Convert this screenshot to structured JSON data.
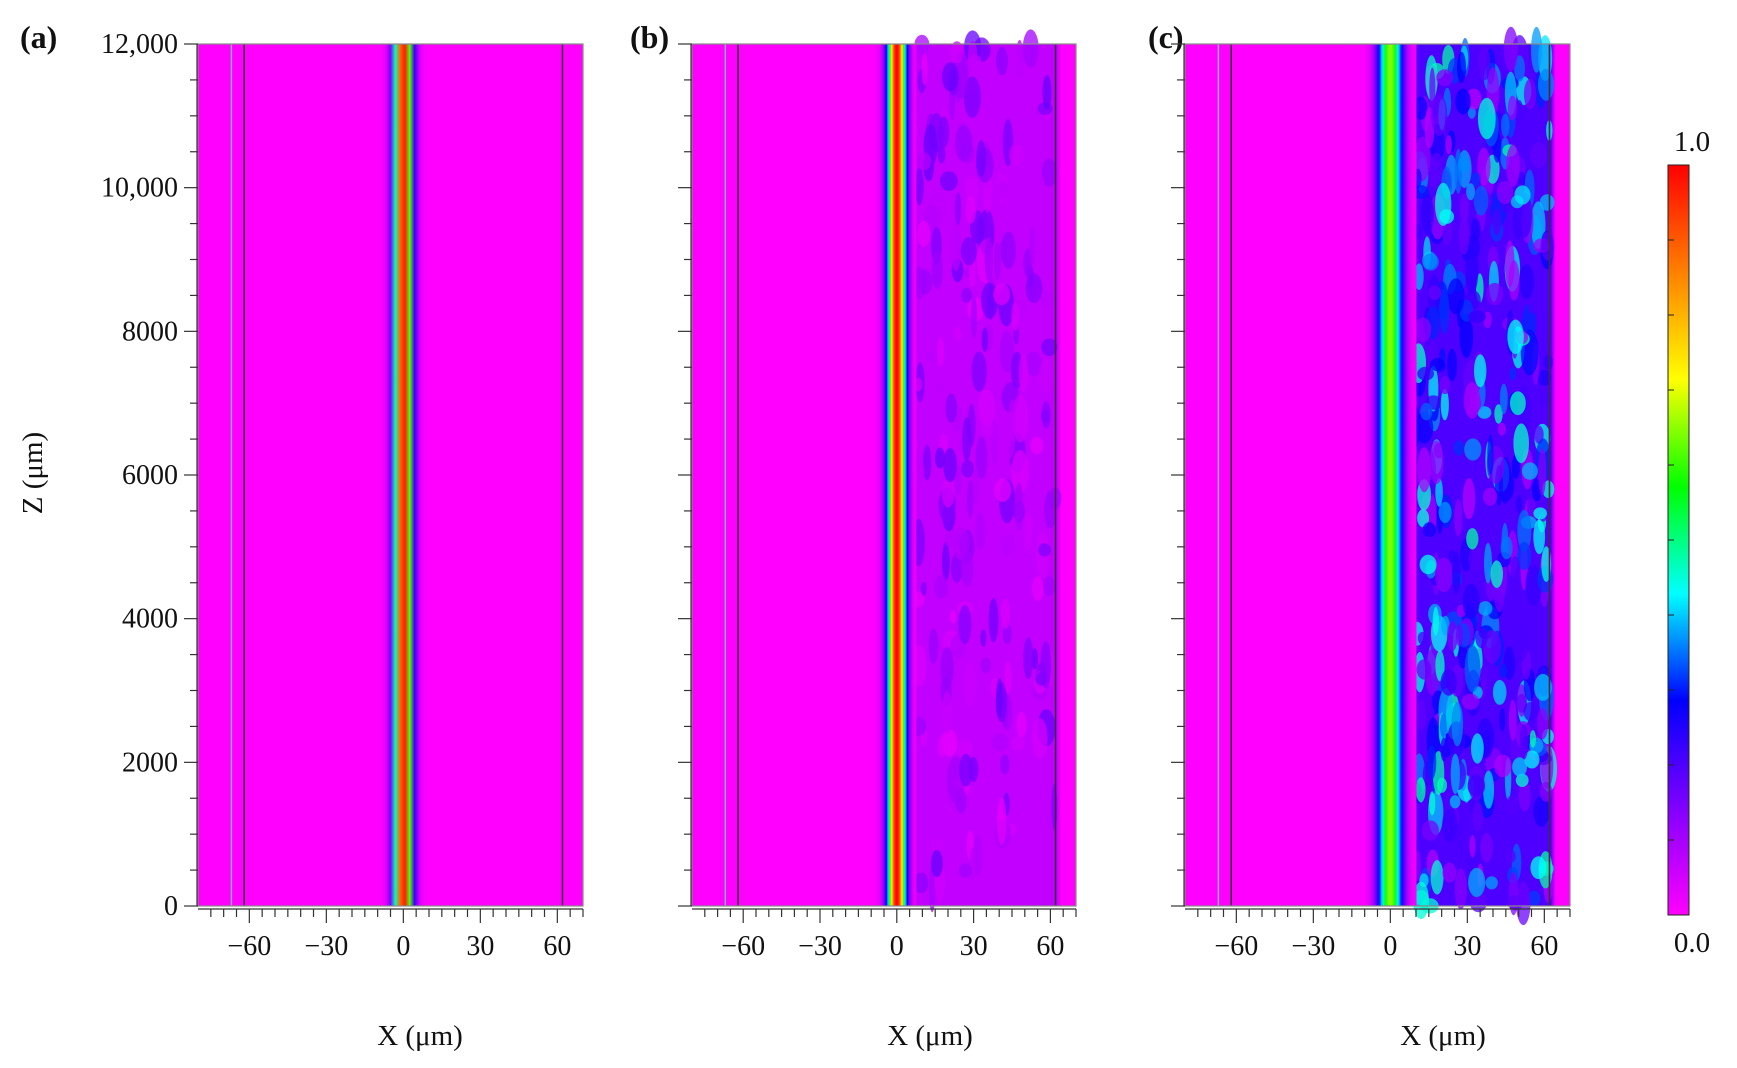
{
  "chart_data": [
    {
      "type": "heatmap",
      "panel_label": "(a)",
      "xlabel": "X (μm)",
      "ylabel": "Z (μm)",
      "xlim": [
        -80,
        70
      ],
      "ylim": [
        0,
        12000
      ],
      "x_ticks": [
        -60,
        -30,
        0,
        30,
        60
      ],
      "x_tick_labels": [
        "−60",
        "−30",
        "0",
        "30",
        "60"
      ],
      "y_ticks": [
        0,
        2000,
        4000,
        6000,
        8000,
        10000,
        12000
      ],
      "y_tick_labels": [
        "0",
        "2000",
        "4000",
        "6000",
        "8000",
        "10,000",
        "12,000"
      ],
      "boundary_lines_x": [
        -62,
        62
      ],
      "core_center_x": 0,
      "core_peak_intensity": 1.0,
      "core_fwhm_um": 6,
      "right_cladding_intensity": 0.0,
      "right_cladding_ripple": 0.0
    },
    {
      "type": "heatmap",
      "panel_label": "(b)",
      "xlabel": "X (μm)",
      "ylabel": "",
      "xlim": [
        -80,
        70
      ],
      "ylim": [
        0,
        12000
      ],
      "x_ticks": [
        -60,
        -30,
        0,
        30,
        60
      ],
      "x_tick_labels": [
        "−60",
        "−30",
        "0",
        "30",
        "60"
      ],
      "y_ticks": [
        0,
        2000,
        4000,
        6000,
        8000,
        10000,
        12000
      ],
      "boundary_lines_x": [
        -62,
        62
      ],
      "core_center_x": 0,
      "core_peak_intensity": 1.0,
      "core_fwhm_um": 6,
      "right_cladding_intensity": 0.07,
      "right_cladding_ripple": 0.03
    },
    {
      "type": "heatmap",
      "panel_label": "(c)",
      "xlabel": "X (μm)",
      "ylabel": "",
      "xlim": [
        -80,
        70
      ],
      "ylim": [
        0,
        12000
      ],
      "x_ticks": [
        -60,
        -30,
        0,
        30,
        60
      ],
      "x_tick_labels": [
        "−60",
        "−30",
        "0",
        "30",
        "60"
      ],
      "y_ticks": [
        0,
        2000,
        4000,
        6000,
        8000,
        10000,
        12000
      ],
      "boundary_lines_x": [
        -62,
        62
      ],
      "core_center_x": 0,
      "core_peak_intensity": 0.65,
      "core_fwhm_um": 8,
      "right_cladding_intensity": 0.2,
      "right_cladding_ripple": 0.08
    }
  ],
  "colorbar": {
    "min_label": "0.0",
    "max_label": "1.0",
    "range": [
      0,
      1
    ],
    "colormap": [
      "#ff00ff",
      "#8000ff",
      "#0000ff",
      "#00ffff",
      "#00ff00",
      "#ffff00",
      "#ff8000",
      "#ff0000"
    ]
  },
  "colors": {
    "background_field": "#ff00ff",
    "boundary_line": "#333333",
    "inner_boundary_line": "#7fb0c0"
  }
}
